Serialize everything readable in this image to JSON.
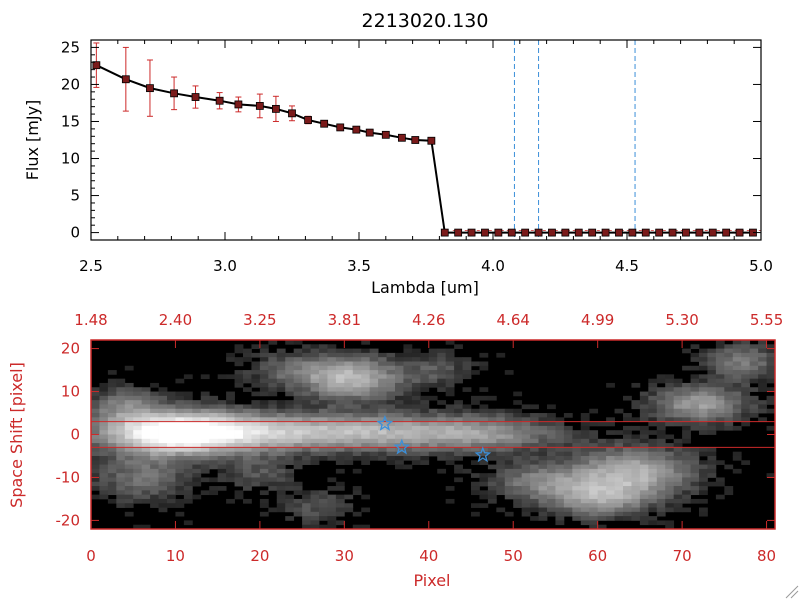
{
  "chart_data": [
    {
      "type": "line",
      "title": "2213020.130",
      "xlabel": "Lambda [um]",
      "ylabel": "Flux [mJy]",
      "xlim": [
        2.5,
        5.0
      ],
      "ylim": [
        -1,
        26
      ],
      "xticks": [
        "2.5",
        "3.0",
        "3.5",
        "4.0",
        "4.5",
        "5.0"
      ],
      "yticks": [
        "0",
        "5",
        "10",
        "15",
        "20",
        "25"
      ],
      "series": [
        {
          "x": [
            2.52,
            2.63,
            2.72,
            2.81,
            2.89,
            2.98,
            3.05,
            3.13,
            3.19,
            3.25,
            3.31,
            3.37,
            3.43,
            3.49,
            3.54,
            3.6,
            3.66,
            3.71,
            3.77,
            3.82,
            3.87,
            3.92,
            3.97,
            4.02,
            4.07,
            4.12,
            4.17,
            4.22,
            4.27,
            4.32,
            4.37,
            4.42,
            4.47,
            4.52,
            4.57,
            4.62,
            4.67,
            4.72,
            4.77,
            4.82,
            4.87,
            4.92,
            4.97
          ],
          "y": [
            22.6,
            20.7,
            19.5,
            18.8,
            18.3,
            17.8,
            17.3,
            17.1,
            16.7,
            16.1,
            15.2,
            14.7,
            14.2,
            13.9,
            13.5,
            13.2,
            12.8,
            12.5,
            12.4,
            0,
            0,
            0,
            0,
            0,
            0,
            0,
            0,
            0,
            0,
            0,
            0,
            0,
            0,
            0,
            0,
            0,
            0,
            0,
            0,
            0,
            0,
            0,
            0
          ],
          "yerr": [
            3.0,
            4.3,
            3.8,
            2.2,
            1.5,
            1.1,
            1.0,
            1.6,
            1.7,
            1.0,
            0.5,
            0.3,
            0.2,
            0.2,
            0.2,
            0.2,
            0.2,
            0.2,
            0.2,
            0,
            0,
            0,
            0,
            0,
            0,
            0,
            0,
            0,
            0,
            0,
            0,
            0,
            0,
            0,
            0,
            0,
            0,
            0,
            0,
            0,
            0,
            0,
            0
          ]
        }
      ],
      "vlines": [
        4.08,
        4.17,
        4.53
      ],
      "colors": {
        "line": "#000000",
        "marker": "#7a1a1a",
        "errorbar": "#cc2a2a",
        "vline": "#3b8fd9"
      }
    },
    {
      "type": "heatmap",
      "xlabel": "Pixel",
      "ylabel": "Space Shift [pixel]",
      "xlim": [
        0,
        81
      ],
      "ylim": [
        -22,
        22
      ],
      "xticks": [
        "0",
        "10",
        "20",
        "30",
        "40",
        "50",
        "60",
        "70",
        "80"
      ],
      "yticks": [
        "-20",
        "-10",
        "0",
        "10",
        "20"
      ],
      "top_axis_labels": [
        "1.48",
        "2.40",
        "3.25",
        "3.81",
        "4.26",
        "4.64",
        "4.99",
        "5.30",
        "5.55"
      ],
      "hlines": [
        3,
        -3
      ],
      "stars": [
        {
          "x": 34.8,
          "y": 2.5
        },
        {
          "x": 36.8,
          "y": -3.0
        },
        {
          "x": 46.4,
          "y": -4.8
        }
      ],
      "blobs": [
        {
          "x": 10,
          "y": 0.5,
          "amp": 1.0,
          "sx": 6,
          "sy": 3.5
        },
        {
          "x": 22,
          "y": 0.5,
          "amp": 0.55,
          "sx": 10,
          "sy": 3
        },
        {
          "x": 38,
          "y": 0.5,
          "amp": 0.4,
          "sx": 9,
          "sy": 3
        },
        {
          "x": 48,
          "y": 0,
          "amp": 0.25,
          "sx": 6,
          "sy": 3
        },
        {
          "x": 31,
          "y": 13,
          "amp": 0.6,
          "sx": 4,
          "sy": 3.5
        },
        {
          "x": 24,
          "y": 15,
          "amp": 0.25,
          "sx": 4,
          "sy": 3
        },
        {
          "x": 41,
          "y": 15,
          "amp": 0.2,
          "sx": 3,
          "sy": 3
        },
        {
          "x": 64,
          "y": -9,
          "amp": 0.6,
          "sx": 5,
          "sy": 4
        },
        {
          "x": 60,
          "y": -15,
          "amp": 0.45,
          "sx": 4,
          "sy": 3
        },
        {
          "x": 53,
          "y": -11,
          "amp": 0.35,
          "sx": 4,
          "sy": 3
        },
        {
          "x": 72,
          "y": 7,
          "amp": 0.5,
          "sx": 4,
          "sy": 3
        },
        {
          "x": 77,
          "y": 17,
          "amp": 0.35,
          "sx": 3,
          "sy": 3
        },
        {
          "x": 6,
          "y": -10,
          "amp": 0.3,
          "sx": 4,
          "sy": 4
        },
        {
          "x": 4,
          "y": 7,
          "amp": 0.3,
          "sx": 3,
          "sy": 3
        },
        {
          "x": 27,
          "y": -17,
          "amp": 0.2,
          "sx": 3,
          "sy": 3
        },
        {
          "x": 20,
          "y": -9,
          "amp": 0.2,
          "sx": 3,
          "sy": 3
        }
      ],
      "colors": {
        "frame": "#cc2a2a",
        "hline": "#cc2a2a",
        "star": "#3b8fd9",
        "background": "#000000"
      }
    }
  ]
}
